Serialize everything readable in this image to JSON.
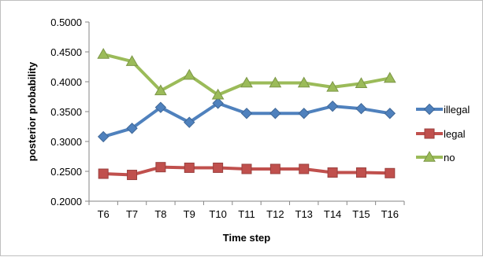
{
  "chart_data": {
    "type": "line",
    "title": "",
    "xlabel": "Time step",
    "ylabel": "posterior probability",
    "categories": [
      "T6",
      "T7",
      "T8",
      "T9",
      "T10",
      "T11",
      "T12",
      "T13",
      "T14",
      "T15",
      "T16"
    ],
    "ylim": [
      0.2,
      0.5
    ],
    "yticks": [
      "0.2000",
      "0.2500",
      "0.3000",
      "0.3500",
      "0.4000",
      "0.4500",
      "0.5000"
    ],
    "grid": false,
    "legend_position": "right",
    "series": [
      {
        "name": "illegal",
        "color": "#4f81bd",
        "marker": "diamond",
        "values": [
          0.308,
          0.322,
          0.357,
          0.332,
          0.364,
          0.347,
          0.347,
          0.347,
          0.359,
          0.355,
          0.347
        ]
      },
      {
        "name": "legal",
        "color": "#c0504d",
        "marker": "square",
        "values": [
          0.246,
          0.244,
          0.257,
          0.256,
          0.256,
          0.254,
          0.254,
          0.254,
          0.248,
          0.248,
          0.247
        ]
      },
      {
        "name": "no",
        "color": "#9bbb59",
        "marker": "triangle",
        "values": [
          0.446,
          0.434,
          0.385,
          0.411,
          0.378,
          0.398,
          0.398,
          0.398,
          0.391,
          0.397,
          0.406
        ]
      }
    ]
  }
}
